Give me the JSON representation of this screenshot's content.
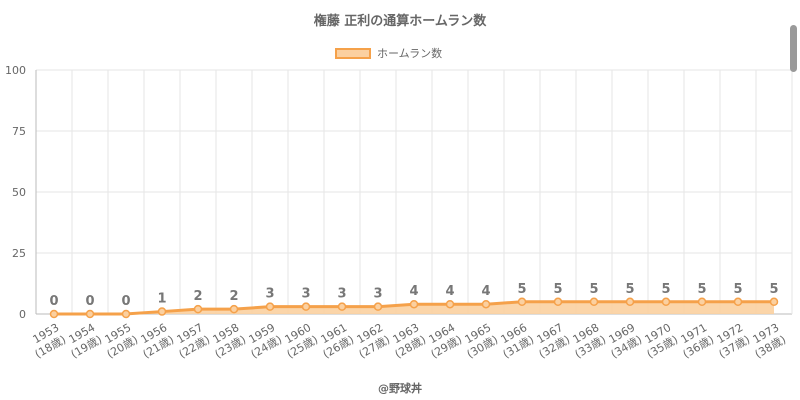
{
  "chart_data": {
    "type": "area",
    "title": "権藤 正利の通算ホームラン数",
    "categories": [
      "1953",
      "1954",
      "1955",
      "1956",
      "1957",
      "1958",
      "1959",
      "1960",
      "1961",
      "1962",
      "1963",
      "1964",
      "1965",
      "1966",
      "1967",
      "1968",
      "1969",
      "1970",
      "1971",
      "1972",
      "1973"
    ],
    "sublabels": [
      "(18歳)",
      "(19歳)",
      "(20歳)",
      "(21歳)",
      "(22歳)",
      "(23歳)",
      "(24歳)",
      "(25歳)",
      "(26歳)",
      "(27歳)",
      "(28歳)",
      "(29歳)",
      "(30歳)",
      "(31歳)",
      "(32歳)",
      "(33歳)",
      "(34歳)",
      "(35歳)",
      "(36歳)",
      "(37歳)",
      "(38歳)"
    ],
    "series": [
      {
        "name": "ホームラン数",
        "values": [
          0,
          0,
          0,
          1,
          2,
          2,
          3,
          3,
          3,
          3,
          4,
          4,
          4,
          5,
          5,
          5,
          5,
          5,
          5,
          5,
          5
        ]
      }
    ],
    "ylim": [
      0,
      100
    ],
    "yticks": [
      0,
      25,
      50,
      75,
      100
    ],
    "grid": true,
    "legend_position": "top",
    "colors": {
      "line": "#f5a14a",
      "fill": "#fbd0a0",
      "grid": "#e6e6e6",
      "axis": "#bbbbbb"
    }
  },
  "credit": "@野球丼"
}
